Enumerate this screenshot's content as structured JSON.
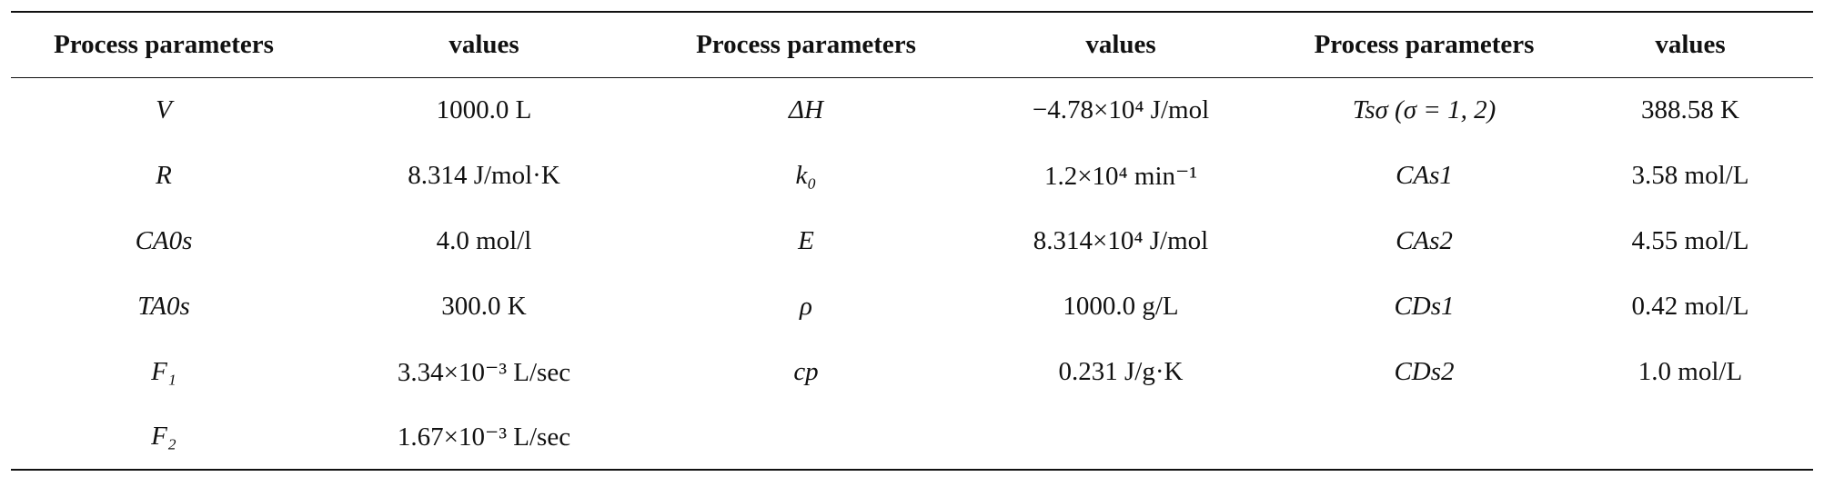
{
  "table": {
    "headers": [
      "Process parameters",
      "values",
      "Process parameters",
      "values",
      "Process parameters",
      "values"
    ],
    "rows": [
      [
        "V",
        "1000.0 L",
        "ΔH",
        "−4.78×10⁴ J/mol",
        "Tsσ (σ = 1, 2)",
        "388.58 K"
      ],
      [
        "R",
        "8.314 J/mol·K",
        "k₀",
        "1.2×10⁴ min⁻¹",
        "CAs1",
        "3.58 mol/L"
      ],
      [
        "CA0s",
        "4.0 mol/l",
        "E",
        "8.314×10⁴ J/mol",
        "CAs2",
        "4.55 mol/L"
      ],
      [
        "TA0s",
        "300.0 K",
        "ρ",
        "1000.0 g/L",
        "CDs1",
        "0.42 mol/L"
      ],
      [
        "F₁",
        "3.34×10⁻³ L/sec",
        "cp",
        "0.231 J/g·K",
        "CDs2",
        "1.0 mol/L"
      ],
      [
        "F₂",
        "1.67×10⁻³ L/sec",
        "",
        "",
        "",
        ""
      ]
    ]
  }
}
